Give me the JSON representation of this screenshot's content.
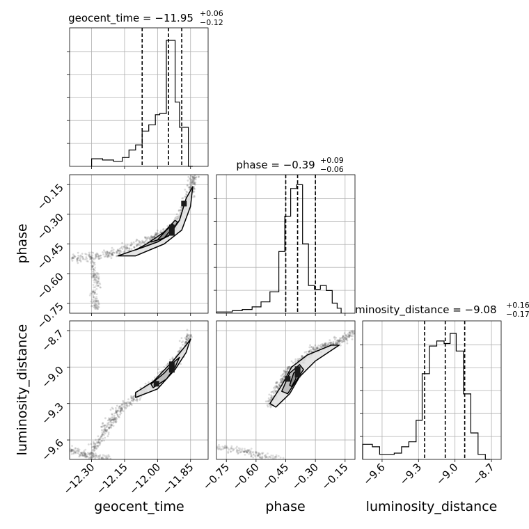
{
  "chart_data": {
    "type": "corner",
    "parameters": [
      "geocent_time",
      "phase",
      "luminosity_distance"
    ],
    "titles": [
      {
        "param": "geocent_time",
        "median": "−11.95",
        "plus": "+0.06",
        "minus": "−0.12"
      },
      {
        "param": "phase",
        "median": "−0.39",
        "plus": "+0.09",
        "minus": "−0.06"
      },
      {
        "param": "luminosity_distance",
        "median": "−9.08",
        "plus": "+0.16",
        "minus": "−0.17"
      }
    ],
    "axes": {
      "geocent_time": {
        "range": [
          -12.4,
          -11.77
        ],
        "ticks": [
          -12.3,
          -12.15,
          -12.0,
          -11.85
        ],
        "tick_labels": [
          "−12.30",
          "−12.15",
          "−12.00",
          "−11.85"
        ]
      },
      "phase": {
        "range": [
          -0.8,
          -0.1
        ],
        "ticks": [
          -0.75,
          -0.6,
          -0.45,
          -0.3,
          -0.15
        ],
        "tick_labels": [
          "−0.75",
          "−0.60",
          "−0.45",
          "−0.30",
          "−0.15"
        ]
      },
      "luminosity_distance": {
        "range": [
          -9.76,
          -8.62
        ],
        "ticks": [
          -9.6,
          -9.3,
          -9.0,
          -8.7
        ],
        "tick_labels": [
          "−9.6",
          "−9.3",
          "−9.0",
          "−8.7"
        ]
      }
    },
    "quantiles": {
      "geocent_time": [
        -12.07,
        -11.95,
        -11.89
      ],
      "phase": [
        -0.45,
        -0.39,
        -0.3
      ],
      "luminosity_distance": [
        -9.25,
        -9.08,
        -8.92
      ]
    },
    "histograms": {
      "geocent_time": {
        "edges": [
          -12.3,
          -12.25,
          -12.2,
          -12.16,
          -12.13,
          -12.1,
          -12.07,
          -12.04,
          -12.01,
          -11.99,
          -11.96,
          -11.94,
          -11.92,
          -11.9,
          -11.88,
          -11.86,
          -11.84
        ],
        "counts": [
          0.06,
          0.05,
          0.04,
          0.07,
          0.13,
          0.17,
          0.28,
          0.33,
          0.41,
          0.42,
          1.0,
          1.0,
          0.51,
          0.31,
          0.31,
          0.0
        ]
      },
      "phase": {
        "edges": [
          -0.8,
          -0.72,
          -0.67,
          -0.62,
          -0.575,
          -0.53,
          -0.485,
          -0.455,
          -0.425,
          -0.395,
          -0.365,
          -0.335,
          -0.305,
          -0.275,
          -0.245,
          -0.215,
          -0.19,
          -0.17
        ],
        "counts": [
          0.01,
          0.02,
          0.03,
          0.05,
          0.09,
          0.17,
          0.49,
          0.77,
          0.99,
          1.02,
          0.55,
          0.22,
          0.19,
          0.22,
          0.18,
          0.08,
          0.04
        ]
      },
      "luminosity_distance": {
        "edges": [
          -9.76,
          -9.68,
          -9.62,
          -9.56,
          -9.5,
          -9.44,
          -9.38,
          -9.32,
          -9.27,
          -9.21,
          -9.15,
          -9.09,
          -9.04,
          -8.99,
          -8.93,
          -8.87,
          -8.81,
          -8.75,
          -8.71
        ],
        "counts": [
          0.12,
          0.1,
          0.04,
          0.04,
          0.05,
          0.1,
          0.14,
          0.31,
          0.68,
          0.9,
          0.94,
          0.92,
          1.0,
          0.86,
          0.52,
          0.21,
          0.04,
          0.0
        ]
      }
    },
    "panels_2d": [
      {
        "x": "geocent_time",
        "y": "phase",
        "trend": [
          [
            -12.4,
            -0.52
          ],
          [
            -12.3,
            -0.52
          ],
          [
            -12.22,
            -0.5
          ],
          [
            -12.15,
            -0.48
          ],
          [
            -12.05,
            -0.43
          ],
          [
            -11.98,
            -0.4
          ],
          [
            -11.93,
            -0.37
          ],
          [
            -11.88,
            -0.28
          ],
          [
            -11.85,
            -0.17
          ],
          [
            -11.83,
            -0.1
          ]
        ],
        "branch": [
          [
            -12.3,
            -0.52
          ],
          [
            -12.29,
            -0.6
          ],
          [
            -12.27,
            -0.65
          ],
          [
            -12.29,
            -0.72
          ],
          [
            -12.28,
            -0.78
          ]
        ],
        "contours": [
          [
            [
              -12.18,
              -0.51
            ],
            [
              -12.05,
              -0.46
            ],
            [
              -11.95,
              -0.41
            ],
            [
              -11.9,
              -0.33
            ],
            [
              -11.87,
              -0.22
            ],
            [
              -11.84,
              -0.16
            ],
            [
              -11.85,
              -0.26
            ],
            [
              -11.89,
              -0.38
            ],
            [
              -11.97,
              -0.45
            ],
            [
              -12.1,
              -0.51
            ]
          ],
          [
            [
              -12.1,
              -0.48
            ],
            [
              -12.0,
              -0.44
            ],
            [
              -11.94,
              -0.4
            ],
            [
              -11.91,
              -0.34
            ],
            [
              -11.92,
              -0.33
            ],
            [
              -11.97,
              -0.39
            ],
            [
              -12.05,
              -0.45
            ]
          ],
          [
            [
              -12.03,
              -0.44
            ],
            [
              -11.97,
              -0.42
            ],
            [
              -11.94,
              -0.38
            ],
            [
              -11.93,
              -0.35
            ],
            [
              -11.96,
              -0.38
            ],
            [
              -12.0,
              -0.43
            ]
          ]
        ],
        "peaks": [
          [
            -11.935,
            -0.38
          ],
          [
            -11.88,
            -0.26
          ]
        ]
      },
      {
        "x": "geocent_time",
        "y": "luminosity_distance",
        "trend": [
          [
            -12.3,
            -9.72
          ],
          [
            -12.25,
            -9.55
          ],
          [
            -12.2,
            -9.4
          ],
          [
            -12.12,
            -9.27
          ],
          [
            -12.05,
            -9.18
          ],
          [
            -11.97,
            -9.05
          ],
          [
            -11.9,
            -8.9
          ],
          [
            -11.85,
            -8.72
          ]
        ],
        "branch": [
          [
            -12.4,
            -9.68
          ],
          [
            -12.33,
            -9.72
          ],
          [
            -12.28,
            -9.74
          ],
          [
            -12.22,
            -9.76
          ]
        ],
        "contours": [
          [
            [
              -12.1,
              -9.25
            ],
            [
              -12.0,
              -9.18
            ],
            [
              -11.92,
              -9.02
            ],
            [
              -11.87,
              -8.88
            ],
            [
              -11.85,
              -8.77
            ],
            [
              -11.87,
              -8.82
            ],
            [
              -11.93,
              -8.95
            ],
            [
              -12.02,
              -9.12
            ],
            [
              -12.1,
              -9.21
            ]
          ],
          [
            [
              -12.02,
              -9.17
            ],
            [
              -11.96,
              -9.1
            ],
            [
              -11.92,
              -9.0
            ],
            [
              -11.9,
              -8.92
            ],
            [
              -11.92,
              -8.95
            ],
            [
              -11.97,
              -9.05
            ],
            [
              -12.03,
              -9.14
            ]
          ]
        ],
        "peaks": [
          [
            -11.935,
            -9.0
          ],
          [
            -12.005,
            -9.16
          ]
        ]
      },
      {
        "x": "phase",
        "y": "luminosity_distance",
        "trend": [
          [
            -0.53,
            -9.3
          ],
          [
            -0.49,
            -9.18
          ],
          [
            -0.44,
            -9.05
          ],
          [
            -0.39,
            -8.97
          ],
          [
            -0.32,
            -8.88
          ],
          [
            -0.25,
            -8.82
          ],
          [
            -0.18,
            -8.79
          ],
          [
            -0.1,
            -8.72
          ]
        ],
        "branch": [
          [
            -0.8,
            -9.66
          ],
          [
            -0.7,
            -9.68
          ],
          [
            -0.62,
            -9.71
          ],
          [
            -0.55,
            -9.74
          ],
          [
            -0.48,
            -9.76
          ]
        ],
        "contours": [
          [
            [
              -0.53,
              -9.3
            ],
            [
              -0.47,
              -9.15
            ],
            [
              -0.42,
              -9.0
            ],
            [
              -0.34,
              -8.9
            ],
            [
              -0.22,
              -8.82
            ],
            [
              -0.18,
              -8.82
            ],
            [
              -0.3,
              -8.95
            ],
            [
              -0.38,
              -9.08
            ],
            [
              -0.43,
              -9.22
            ],
            [
              -0.5,
              -9.33
            ]
          ],
          [
            [
              -0.47,
              -9.2
            ],
            [
              -0.43,
              -9.05
            ],
            [
              -0.38,
              -8.98
            ],
            [
              -0.36,
              -9.02
            ],
            [
              -0.4,
              -9.12
            ],
            [
              -0.44,
              -9.22
            ]
          ],
          [
            [
              -0.43,
              -9.15
            ],
            [
              -0.41,
              -9.05
            ],
            [
              -0.39,
              -9.02
            ],
            [
              -0.4,
              -9.1
            ],
            [
              -0.42,
              -9.16
            ]
          ]
        ],
        "peaks": [
          [
            -0.39,
            -9.04
          ],
          [
            -0.44,
            -9.12
          ]
        ]
      }
    ]
  }
}
